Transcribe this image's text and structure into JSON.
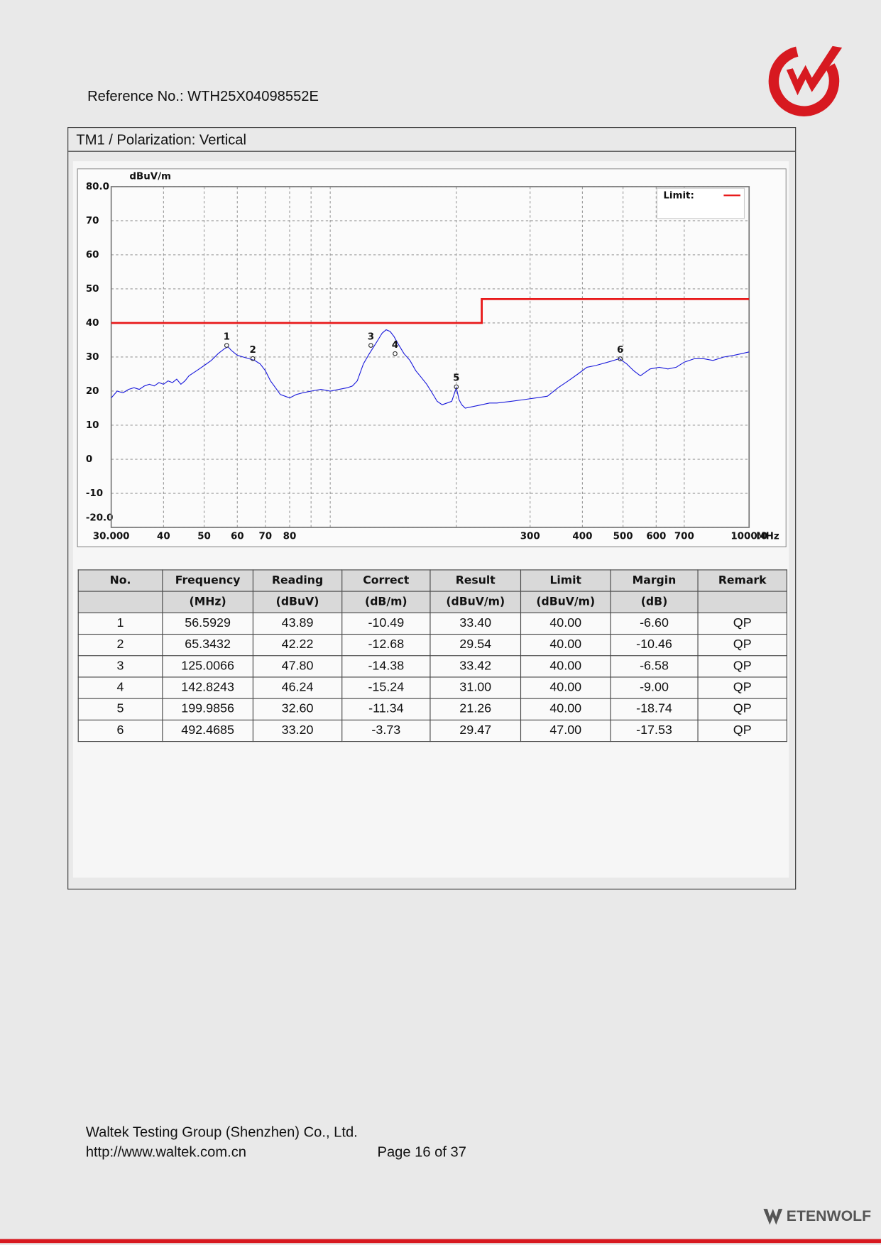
{
  "header": {
    "reference": "Reference No.: WTH25X04098552E"
  },
  "section": {
    "title": "TM1 / Polarization: Vertical"
  },
  "chart_data": {
    "type": "line",
    "y_unit": "dBuV/m",
    "x_unit": "MHz",
    "xscale": "log",
    "grid": true,
    "legend": "upper right",
    "xlim": [
      30,
      1000
    ],
    "ylim": [
      -20,
      80
    ],
    "xticks": [
      {
        "value": 30,
        "label": "30.000"
      },
      40,
      50,
      60,
      70,
      80,
      300,
      400,
      500,
      600,
      700,
      {
        "value": 1000,
        "label": "1000.0"
      }
    ],
    "minor_xgrid": [
      90,
      100,
      200
    ],
    "yticks": [
      {
        "value": 80,
        "label": "80.0"
      },
      70,
      60,
      50,
      40,
      30,
      20,
      10,
      0,
      -10,
      {
        "value": -20,
        "label": "-20.0"
      }
    ],
    "series": [
      {
        "name": "Limit:",
        "color": "#e8191a",
        "x": [
          30,
          230,
          230,
          1000
        ],
        "values": [
          40,
          40,
          47,
          47
        ]
      },
      {
        "color": "#1a1adb",
        "x": [
          30,
          31,
          32,
          33,
          34,
          35,
          36,
          37,
          38,
          39,
          40,
          41,
          42,
          43,
          44,
          45,
          46,
          48,
          50,
          52,
          54,
          56,
          57,
          58,
          60,
          62,
          64,
          66,
          68,
          70,
          72,
          74,
          76,
          78,
          80,
          83,
          86,
          90,
          95,
          100,
          105,
          110,
          113,
          116,
          120,
          124,
          127,
          130,
          133,
          136,
          139,
          142,
          145,
          150,
          155,
          160,
          165,
          170,
          175,
          180,
          185,
          190,
          195,
          200,
          203,
          206,
          210,
          220,
          230,
          240,
          250,
          270,
          290,
          310,
          330,
          350,
          370,
          390,
          410,
          430,
          460,
          490,
          510,
          530,
          550,
          580,
          610,
          640,
          670,
          700,
          740,
          780,
          820,
          870,
          920,
          960,
          1000
        ],
        "values": [
          18,
          20,
          19.5,
          20.5,
          21,
          20.5,
          21.5,
          22,
          21.5,
          22.5,
          22,
          23,
          22.5,
          23.5,
          22,
          23,
          24.5,
          26,
          27.5,
          29,
          31,
          32.5,
          33,
          32,
          30.5,
          30,
          29.5,
          29,
          28,
          26,
          23,
          21,
          19,
          18.5,
          18,
          19,
          19.5,
          20,
          20.5,
          20,
          20.5,
          21,
          21.5,
          23,
          28,
          31,
          33,
          35,
          37,
          38,
          37.5,
          36,
          34,
          31,
          29,
          26,
          24,
          22,
          19.5,
          17,
          16,
          16.5,
          17,
          21,
          17.5,
          16,
          15,
          15.5,
          16,
          16.5,
          16.5,
          17,
          17.5,
          18,
          18.5,
          21,
          23,
          25,
          27,
          27.5,
          28.5,
          29.5,
          28,
          26,
          24.5,
          26.5,
          27,
          26.5,
          27,
          28.5,
          29.5,
          29.5,
          29,
          30,
          30.5,
          31,
          31.5
        ]
      }
    ],
    "markers": {
      "labels": [
        "1",
        "2",
        "3",
        "4",
        "5",
        "6"
      ],
      "x": [
        56.5929,
        65.3432,
        125.0066,
        142.8243,
        199.9856,
        492.4685
      ],
      "values": [
        33.4,
        29.54,
        33.42,
        31.0,
        21.26,
        29.47
      ]
    }
  },
  "table": {
    "columns": [
      "No.",
      "Frequency",
      "Reading",
      "Correct",
      "Result",
      "Limit",
      "Margin",
      "Remark"
    ],
    "units": [
      null,
      "(MHz)",
      "(dBuV)",
      "(dB/m)",
      "(dBuV/m)",
      "(dBuV/m)",
      "(dB)",
      null
    ],
    "rows": [
      [
        "1",
        "56.5929",
        "43.89",
        "-10.49",
        "33.40",
        "40.00",
        "-6.60",
        "QP"
      ],
      [
        "2",
        "65.3432",
        "42.22",
        "-12.68",
        "29.54",
        "40.00",
        "-10.46",
        "QP"
      ],
      [
        "3",
        "125.0066",
        "47.80",
        "-14.38",
        "33.42",
        "40.00",
        "-6.58",
        "QP"
      ],
      [
        "4",
        "142.8243",
        "46.24",
        "-15.24",
        "31.00",
        "40.00",
        "-9.00",
        "QP"
      ],
      [
        "5",
        "199.9856",
        "32.60",
        "-11.34",
        "21.26",
        "40.00",
        "-18.74",
        "QP"
      ],
      [
        "6",
        "492.4685",
        "33.20",
        "-3.73",
        "29.47",
        "47.00",
        "-17.53",
        "QP"
      ]
    ]
  },
  "footer": {
    "company": "Waltek Testing Group (Shenzhen) Co., Ltd.",
    "website": "http://www.waltek.com.cn",
    "page": "Page 16 of 37",
    "brand": "ETENWOLF"
  }
}
